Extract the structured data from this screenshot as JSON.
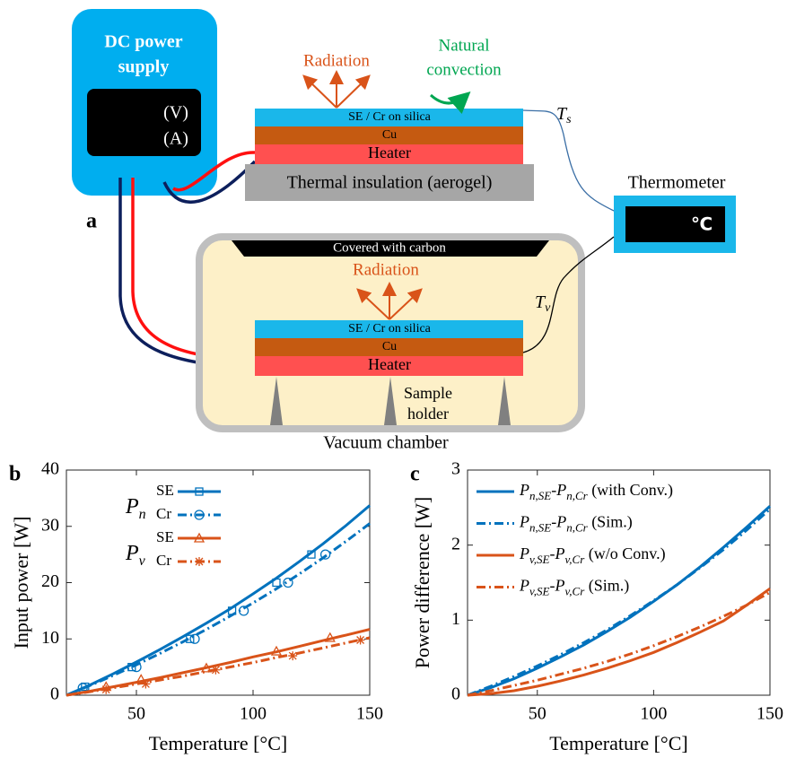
{
  "diagram": {
    "panel_label": "a",
    "power_supply": {
      "title_lines": [
        "DC power",
        "supply"
      ],
      "readouts": [
        "(V)",
        "(A)"
      ]
    },
    "top_stack": {
      "layers": [
        "SE / Cr on silica",
        "Cu",
        "Heater"
      ],
      "insulation": "Thermal insulation (aerogel)",
      "radiation": "Radiation",
      "convection": [
        "Natural",
        "convection"
      ],
      "sensor": [
        "T",
        "s"
      ]
    },
    "thermometer": {
      "label": "Thermometer",
      "unit": "℃"
    },
    "vacuum": {
      "label": "Vacuum chamber",
      "cover": "Covered with carbon",
      "radiation": "Radiation",
      "layers": [
        "SE / Cr on silica",
        "Cu",
        "Heater"
      ],
      "sensor": [
        "T",
        "v"
      ],
      "holder": [
        "Sample",
        "holder"
      ]
    }
  },
  "chart_data": [
    {
      "type": "line",
      "panel_label": "b",
      "xlabel": "Temperature [°C]",
      "ylabel": "Input power [W]",
      "xlim": [
        20,
        150
      ],
      "xticks": [
        50,
        100,
        150
      ],
      "ylim": [
        0,
        40
      ],
      "yticks": [
        0,
        10,
        20,
        30,
        40
      ],
      "legend_groups": [
        [
          "P",
          "n"
        ],
        [
          "P",
          "v"
        ]
      ],
      "x": [
        20,
        30,
        40,
        50,
        60,
        70,
        80,
        90,
        100,
        110,
        120,
        130,
        140,
        150
      ],
      "series": [
        {
          "name": "SE",
          "group": 0,
          "color": "#0072bd",
          "dash": "solid",
          "marker": "square",
          "values": [
            0,
            1.8,
            3.8,
            5.9,
            8.1,
            10.4,
            12.8,
            15.3,
            18,
            20.8,
            23.8,
            26.9,
            30.2,
            33.7
          ],
          "marker_x": [
            28,
            48,
            73,
            91,
            110,
            125
          ],
          "marker_values": [
            1.5,
            5,
            10,
            15,
            20,
            25
          ]
        },
        {
          "name": "Cr",
          "group": 0,
          "color": "#0072bd",
          "dash": "dashdot",
          "marker": "circle",
          "values": [
            0,
            1.7,
            3.5,
            5.4,
            7.4,
            9.5,
            11.7,
            14,
            16.4,
            18.9,
            21.6,
            24.4,
            27.4,
            30.5
          ],
          "marker_x": [
            27,
            50,
            75,
            96,
            115,
            131
          ],
          "marker_values": [
            1.3,
            5,
            10,
            15,
            20,
            25
          ]
        },
        {
          "name": "SE",
          "group": 1,
          "color": "#d95319",
          "dash": "solid",
          "marker": "triangle",
          "values": [
            0,
            0.7,
            1.5,
            2.3,
            3.1,
            4.0,
            4.9,
            5.8,
            6.8,
            7.7,
            8.7,
            9.7,
            10.7,
            11.7
          ],
          "marker_x": [
            37,
            52,
            80,
            110,
            133
          ],
          "marker_values": [
            1.5,
            2.8,
            4.8,
            7.8,
            10.2
          ]
        },
        {
          "name": "Cr",
          "group": 1,
          "color": "#d95319",
          "dash": "dashdot",
          "marker": "asterisk",
          "values": [
            0,
            0.6,
            1.3,
            2.0,
            2.7,
            3.4,
            4.2,
            5.0,
            5.8,
            6.7,
            7.5,
            8.4,
            9.3,
            10.2
          ],
          "marker_x": [
            37,
            54,
            84,
            117,
            146
          ],
          "marker_values": [
            1,
            2,
            4.5,
            7,
            9.8
          ]
        }
      ]
    },
    {
      "type": "line",
      "panel_label": "c",
      "xlabel": "Temperature [°C]",
      "ylabel": "Power difference [W]",
      "xlim": [
        20,
        150
      ],
      "xticks": [
        50,
        100,
        150
      ],
      "ylim": [
        0,
        3
      ],
      "yticks": [
        0,
        1,
        2,
        3
      ],
      "x": [
        20,
        30,
        40,
        50,
        60,
        70,
        80,
        90,
        100,
        110,
        120,
        130,
        140,
        150
      ],
      "series": [
        {
          "name_parts": [
            "P",
            "n,SE",
            "-P",
            "n,Cr",
            " (with Conv.)"
          ],
          "color": "#0072bd",
          "dash": "solid",
          "values": [
            0,
            0.1,
            0.22,
            0.36,
            0.51,
            0.67,
            0.85,
            1.04,
            1.25,
            1.47,
            1.71,
            1.97,
            2.24,
            2.52
          ]
        },
        {
          "name_parts": [
            "P",
            "n,SE",
            "-P",
            "n,Cr",
            " (Sim.)"
          ],
          "color": "#0072bd",
          "dash": "dashdot",
          "values": [
            0,
            0.12,
            0.25,
            0.39,
            0.54,
            0.7,
            0.87,
            1.06,
            1.26,
            1.47,
            1.7,
            1.94,
            2.2,
            2.48
          ]
        },
        {
          "name_parts": [
            "P",
            "v,SE",
            "-P",
            "v,Cr",
            " (w/o Conv.)"
          ],
          "color": "#d95319",
          "dash": "solid",
          "values": [
            0,
            0.02,
            0.06,
            0.12,
            0.19,
            0.27,
            0.36,
            0.46,
            0.57,
            0.7,
            0.84,
            0.99,
            1.2,
            1.42
          ]
        },
        {
          "name_parts": [
            "P",
            "v,SE",
            "-P",
            "v,Cr",
            " (Sim.)"
          ],
          "color": "#d95319",
          "dash": "dashdot",
          "values": [
            0,
            0.06,
            0.13,
            0.2,
            0.28,
            0.36,
            0.45,
            0.55,
            0.66,
            0.78,
            0.91,
            1.05,
            1.2,
            1.37
          ]
        }
      ]
    }
  ]
}
